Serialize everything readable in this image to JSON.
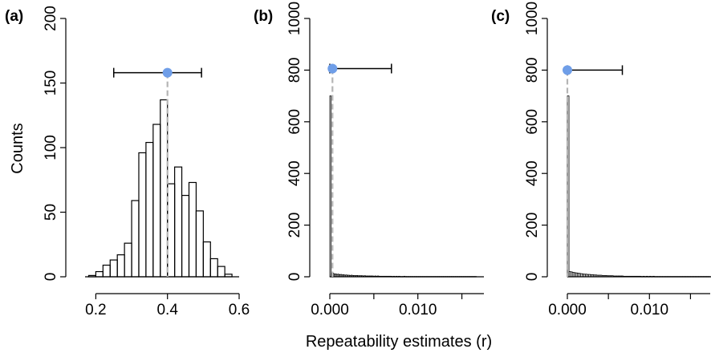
{
  "figure": {
    "xlabel": "Repeatability estimates (r)",
    "ylabel": "Counts"
  },
  "chart_data": [
    {
      "type": "bar",
      "panel_label": "(a)",
      "ylabel": "Counts",
      "xlim": [
        0.17,
        0.6
      ],
      "ylim": [
        0,
        200
      ],
      "xticks": [
        "0.2",
        "0.4",
        "0.6"
      ],
      "xtick_values": [
        0.2,
        0.4,
        0.6
      ],
      "yticks": [
        "0",
        "50",
        "100",
        "150",
        "200"
      ],
      "ytick_values": [
        0,
        50,
        100,
        150,
        200
      ],
      "bins": {
        "edges": [
          0.18,
          0.2,
          0.22,
          0.24,
          0.26,
          0.28,
          0.3,
          0.32,
          0.34,
          0.36,
          0.38,
          0.4,
          0.42,
          0.44,
          0.46,
          0.48,
          0.5,
          0.52,
          0.54,
          0.56,
          0.58
        ],
        "counts": [
          1,
          4,
          9,
          13,
          17,
          26,
          59,
          96,
          104,
          118,
          137,
          72,
          85,
          63,
          73,
          51,
          27,
          14,
          8,
          2
        ]
      },
      "point_estimate": {
        "value": 0.4,
        "ci_low": 0.25,
        "ci_high": 0.495,
        "y": 158
      },
      "point_color": "#6f9ee8",
      "line_color": "#b5b5b5"
    },
    {
      "type": "bar",
      "panel_label": "(b)",
      "xlim": [
        0.0,
        0.0175
      ],
      "ylim": [
        0,
        1000
      ],
      "xticks": [
        "0.000",
        "0.010"
      ],
      "xtick_values": [
        0.0,
        0.01
      ],
      "minor_xtick_values": [
        0.005,
        0.015
      ],
      "yticks": [
        "0",
        "200",
        "400",
        "600",
        "800",
        "1000"
      ],
      "ytick_values": [
        0,
        200,
        400,
        600,
        800,
        1000
      ],
      "bins": {
        "edges": [
          0.0,
          0.00015,
          0.0003,
          0.00045,
          0.0006,
          0.00075,
          0.0009,
          0.00105,
          0.0012,
          0.00135,
          0.0015,
          0.00165,
          0.0018,
          0.00195,
          0.0021,
          0.00225,
          0.0024,
          0.00255,
          0.0027,
          0.00285,
          0.003,
          0.00315,
          0.0033,
          0.00345,
          0.0036,
          0.00375,
          0.0039,
          0.00405,
          0.0042,
          0.00435,
          0.0045,
          0.00465,
          0.0048,
          0.00495,
          0.0051,
          0.00525,
          0.0054,
          0.00555,
          0.0057,
          0.00585,
          0.006,
          0.00615,
          0.0063,
          0.00645,
          0.0066,
          0.00675,
          0.0069,
          0.00705,
          0.0072,
          0.00735,
          0.0075,
          0.00765,
          0.0078,
          0.00795,
          0.0081,
          0.00825,
          0.0084,
          0.00855,
          0.0087,
          0.00885,
          0.009,
          0.00915,
          0.0093,
          0.00945,
          0.0096,
          0.00975,
          0.0099,
          0.01005,
          0.0102,
          0.01035,
          0.0105,
          0.01065,
          0.0108,
          0.01095,
          0.0111,
          0.01125,
          0.0114,
          0.01155,
          0.0117,
          0.01185,
          0.012,
          0.01215,
          0.0123,
          0.01245,
          0.0126,
          0.01275,
          0.0129,
          0.01305,
          0.0132,
          0.01335,
          0.0135,
          0.01365,
          0.0138,
          0.01395,
          0.0141,
          0.01425,
          0.0144,
          0.01455,
          0.0147,
          0.01485,
          0.015,
          0.01515,
          0.0153,
          0.01545,
          0.0156,
          0.01575,
          0.0159,
          0.01605,
          0.0162,
          0.01635,
          0.0165,
          0.01665
        ],
        "counts": [
          700,
          12,
          14,
          10,
          11,
          9,
          10,
          8,
          9,
          7,
          8,
          6,
          7,
          6,
          6,
          5,
          6,
          5,
          5,
          4,
          5,
          4,
          4,
          4,
          4,
          3,
          4,
          3,
          3,
          3,
          3,
          3,
          3,
          2,
          3,
          2,
          3,
          2,
          2,
          2,
          2,
          2,
          2,
          2,
          2,
          2,
          2,
          1,
          2,
          1,
          2,
          1,
          2,
          1,
          1,
          1,
          2,
          1,
          1,
          1,
          1,
          1,
          1,
          1,
          1,
          1,
          1,
          1,
          1,
          1,
          1,
          1,
          1,
          1,
          1,
          1,
          1,
          1,
          1,
          1,
          1,
          1,
          1,
          1,
          1,
          1,
          1,
          1,
          1,
          1,
          1,
          1,
          1,
          1,
          1,
          1,
          1,
          1,
          1,
          1,
          1,
          1,
          1,
          1,
          1,
          1,
          1,
          1,
          1,
          1,
          1
        ]
      },
      "point_estimate": {
        "value": 0.0003,
        "ci_low": 0.0,
        "ci_high": 0.007,
        "y": 806
      },
      "point_color": "#6f9ee8",
      "line_color": "#b5b5b5"
    },
    {
      "type": "bar",
      "panel_label": "(c)",
      "xlim": [
        0.0,
        0.0175
      ],
      "ylim": [
        0,
        1000
      ],
      "xticks": [
        "0.000",
        "0.010"
      ],
      "xtick_values": [
        0.0,
        0.01
      ],
      "minor_xtick_values": [
        0.005,
        0.015
      ],
      "yticks": [
        "0",
        "200",
        "400",
        "600",
        "800",
        "1000"
      ],
      "ytick_values": [
        0,
        200,
        400,
        600,
        800,
        1000
      ],
      "bins": {
        "edges": [
          0.0,
          0.0002,
          0.0004,
          0.0006,
          0.0008,
          0.001,
          0.0012,
          0.0014,
          0.0016,
          0.0018,
          0.002,
          0.0022,
          0.0024,
          0.0026,
          0.0028,
          0.003,
          0.0032,
          0.0034,
          0.0036,
          0.0038,
          0.004,
          0.0042,
          0.0044,
          0.0046,
          0.0048,
          0.005,
          0.0052,
          0.0054,
          0.0056,
          0.0058,
          0.006,
          0.0062,
          0.0064,
          0.0066,
          0.0068,
          0.007,
          0.0072,
          0.0074,
          0.0076,
          0.0078,
          0.008,
          0.0082,
          0.0084,
          0.0086,
          0.0088,
          0.009,
          0.0092,
          0.0094,
          0.0096,
          0.0098,
          0.01,
          0.0102,
          0.0104,
          0.0106,
          0.0108,
          0.011,
          0.0112,
          0.0114,
          0.0116,
          0.0118,
          0.012,
          0.0122,
          0.0124,
          0.0126,
          0.0128,
          0.013,
          0.0132,
          0.0134,
          0.0136,
          0.0138,
          0.014,
          0.0142,
          0.0144,
          0.0146,
          0.0148,
          0.015,
          0.0152,
          0.0154,
          0.0156,
          0.0158,
          0.016,
          0.0162,
          0.0164,
          0.0166,
          0.0168,
          0.017,
          0.0172,
          0.0174
        ],
        "counts": [
          700,
          20,
          19,
          17,
          16,
          15,
          14,
          13,
          12,
          11,
          10,
          10,
          9,
          9,
          8,
          8,
          7,
          7,
          6,
          6,
          6,
          5,
          5,
          5,
          4,
          4,
          4,
          4,
          3,
          3,
          3,
          3,
          3,
          3,
          2,
          2,
          2,
          2,
          2,
          2,
          2,
          2,
          2,
          2,
          2,
          1,
          2,
          1,
          2,
          1,
          2,
          1,
          2,
          1,
          1,
          1,
          1,
          1,
          1,
          1,
          1,
          1,
          1,
          1,
          1,
          1,
          1,
          1,
          1,
          1,
          1,
          1,
          1,
          1,
          1,
          1,
          1,
          1,
          1,
          1,
          1,
          1,
          1,
          1,
          1,
          1,
          1
        ]
      },
      "point_estimate": {
        "value": 0.0,
        "ci_low": 0.0,
        "ci_high": 0.0067,
        "y": 800
      },
      "point_color": "#6f9ee8",
      "line_color": "#b5b5b5"
    }
  ]
}
